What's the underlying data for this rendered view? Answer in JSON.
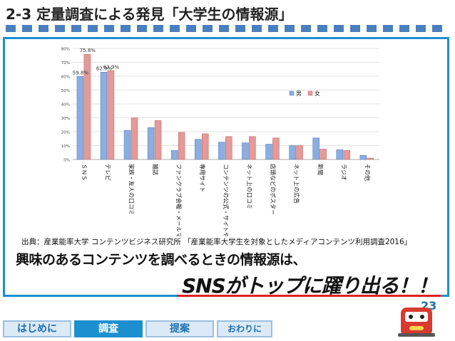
{
  "header": {
    "title": "2-3 定量調査による発見「大学生の情報源」"
  },
  "source": "出典：産業能率大学 コンテンツビジネス研究所 「産業能率大学生を対象としたメディアコンテンツ利用調査2016」",
  "headline": {
    "line1": "興味のあるコンテンツを調べるときの情報源は、",
    "line2": "SNSがトップに躍り出る！！"
  },
  "page_number": "23",
  "nav": {
    "tabs": [
      "はじめに",
      "調査",
      "提案",
      "おわりに"
    ],
    "active": "調査"
  },
  "colors": {
    "male": "#8aaee0",
    "female": "#e39a98",
    "accent": "#1c8fd0"
  },
  "chart_data": {
    "type": "bar",
    "categories": [
      "ＳＮＳ",
      "テレビ",
      "家族・友人の口コミ",
      "雑誌",
      "ファンクラブ会報・メールマガジンなど",
      "専用サイト",
      "コンテンツの公式・サイトやブログ",
      "ネット上の口コミ",
      "店頭などのポスター",
      "ネット上の広告",
      "新聞",
      "ラジオ",
      "その他"
    ],
    "series": [
      {
        "name": "男",
        "values": [
          59.8,
          62.9,
          21,
          23,
          6.5,
          14.5,
          12.5,
          12,
          11,
          10,
          15.5,
          7,
          3
        ]
      },
      {
        "name": "女",
        "values": [
          75.8,
          63.9,
          30,
          28,
          19.5,
          18.5,
          16.5,
          16.5,
          15.5,
          10,
          7.5,
          6.5,
          1
        ]
      }
    ],
    "data_labels": {
      "男": [
        "59.8%",
        "62.9%"
      ],
      "女": [
        "75.8%",
        "63.9%"
      ]
    },
    "y_ticks": [
      "0%",
      "10%",
      "20%",
      "30%",
      "40%",
      "50%",
      "60%",
      "70%",
      "80%"
    ],
    "ylim": [
      0,
      80
    ],
    "legend_position": "right",
    "grid": true
  }
}
